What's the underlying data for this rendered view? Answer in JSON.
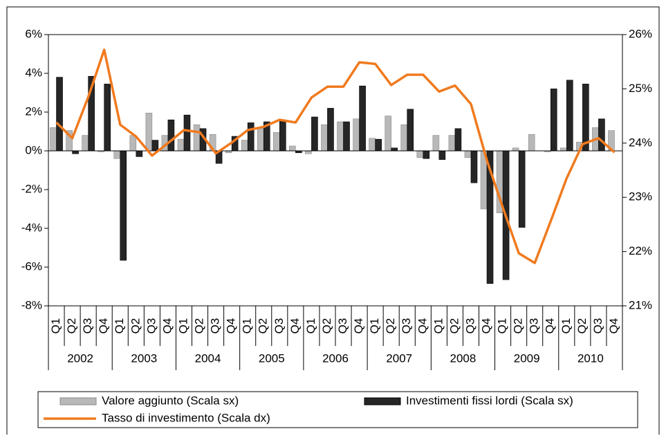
{
  "chart_data": {
    "type": "bar-line",
    "categories": [
      "Q1",
      "Q2",
      "Q3",
      "Q4",
      "Q1",
      "Q2",
      "Q3",
      "Q4",
      "Q1",
      "Q2",
      "Q3",
      "Q4",
      "Q1",
      "Q2",
      "Q3",
      "Q4",
      "Q1",
      "Q2",
      "Q3",
      "Q4",
      "Q1",
      "Q2",
      "Q3",
      "Q4",
      "Q1",
      "Q2",
      "Q3",
      "Q4",
      "Q1",
      "Q2",
      "Q3",
      "Q4",
      "Q1",
      "Q2",
      "Q3",
      "Q4"
    ],
    "years": [
      "2002",
      "2003",
      "2004",
      "2005",
      "2006",
      "2007",
      "2008",
      "2009",
      "2010"
    ],
    "series": [
      {
        "name": "Valore aggiunto (Scala sx)",
        "type": "bar",
        "color": "#b8b8b8",
        "values": [
          1.2,
          1.05,
          0.8,
          -0.05,
          -0.4,
          0.8,
          1.95,
          0.8,
          0.6,
          1.35,
          0.85,
          -0.1,
          0.55,
          1.2,
          0.95,
          0.25,
          -0.15,
          1.35,
          1.5,
          1.65,
          0.65,
          1.8,
          1.35,
          -0.35,
          0.8,
          0.8,
          -0.35,
          -3.0,
          -3.2,
          0.15,
          0.85,
          -0.05,
          0.15,
          0.45,
          1.2,
          1.05
        ]
      },
      {
        "name": "Investimenti fissi lordi (Scala sx)",
        "type": "bar",
        "color": "#262626",
        "values": [
          3.8,
          -0.15,
          3.85,
          3.45,
          -5.65,
          -0.3,
          0.55,
          1.6,
          1.85,
          1.15,
          -0.65,
          0.75,
          1.45,
          1.5,
          1.6,
          -0.1,
          1.75,
          2.2,
          1.5,
          3.35,
          0.6,
          0.15,
          2.15,
          -0.4,
          -0.45,
          1.15,
          -1.65,
          -6.85,
          -6.65,
          -3.95,
          0,
          3.2,
          3.65,
          3.45,
          1.65,
          null
        ]
      },
      {
        "name": "Tasso di investimento (Scala dx)",
        "type": "line",
        "axis": "y2",
        "color": "#f07a1e",
        "values": [
          24.38,
          24.09,
          24.85,
          25.72,
          24.34,
          24.12,
          23.77,
          24.0,
          24.24,
          24.2,
          23.81,
          24.01,
          24.24,
          24.3,
          24.43,
          24.38,
          24.84,
          25.04,
          25.04,
          25.49,
          25.46,
          25.07,
          25.26,
          25.26,
          24.95,
          25.06,
          24.72,
          23.68,
          22.81,
          21.97,
          21.79,
          22.56,
          23.35,
          23.98,
          24.09,
          23.83
        ]
      }
    ],
    "ylim": [
      -8,
      6
    ],
    "yticks": [
      {
        "value": -8,
        "label": "-8%"
      },
      {
        "value": -6,
        "label": "-6%"
      },
      {
        "value": -4,
        "label": "-4%"
      },
      {
        "value": -2,
        "label": "-2%"
      },
      {
        "value": 0,
        "label": "0%"
      },
      {
        "value": 2,
        "label": "2%"
      },
      {
        "value": 4,
        "label": "4%"
      },
      {
        "value": 6,
        "label": "6%"
      }
    ],
    "y2lim": [
      21,
      26
    ],
    "y2ticks": [
      {
        "value": 21,
        "label": "21%"
      },
      {
        "value": 22,
        "label": "22%"
      },
      {
        "value": 23,
        "label": "23%"
      },
      {
        "value": 24,
        "label": "24%"
      },
      {
        "value": 25,
        "label": "25%"
      },
      {
        "value": 26,
        "label": "26%"
      }
    ]
  }
}
